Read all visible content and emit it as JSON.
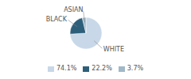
{
  "chart_data": {
    "type": "pie",
    "categories": [
      "WHITE",
      "BLACK",
      "ASIAN"
    ],
    "values": [
      74.1,
      22.2,
      3.7
    ],
    "value_labels": [
      "74.1%",
      "22.2%",
      "3.7%"
    ],
    "colors": [
      "#c8d8e8",
      "#2e5f7a",
      "#a0b8c8"
    ],
    "legend": "bottom"
  }
}
